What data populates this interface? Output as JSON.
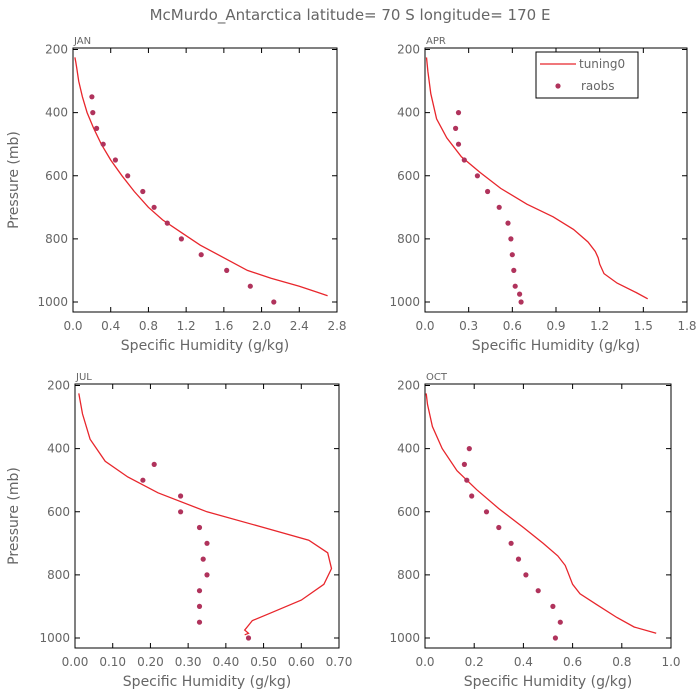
{
  "title": "McMurdo_Antarctica  latitude= 70 S longitude= 170 E",
  "colors": {
    "model": "#e8262c",
    "obs": "#b0335c",
    "axes": "#000000",
    "text": "#666666"
  },
  "legend": {
    "model": "tuning0",
    "obs": "raobs",
    "placement": "top-right of APR panel"
  },
  "chart_data": [
    {
      "type": "line",
      "panel": "JAN",
      "xlabel": "Specific Humidity (g/kg)",
      "ylabel": "Pressure (mb)",
      "xlim": [
        0,
        2.8
      ],
      "ylim": [
        1000,
        200
      ],
      "xticks": [
        "0.0",
        "0.4",
        "0.8",
        "1.2",
        "1.6",
        "2.0",
        "2.4",
        "2.8"
      ],
      "yticks": [
        "200",
        "400",
        "600",
        "800",
        "1000"
      ],
      "series": [
        {
          "name": "tuning0",
          "kind": "line",
          "x": [
            2.7,
            2.6,
            2.4,
            2.1,
            1.85,
            1.6,
            1.35,
            1.15,
            0.95,
            0.8,
            0.65,
            0.52,
            0.4,
            0.3,
            0.22,
            0.15,
            0.1,
            0.06,
            0.04,
            0.03,
            0.02
          ],
          "y": [
            980,
            970,
            950,
            925,
            900,
            860,
            820,
            780,
            740,
            700,
            650,
            600,
            550,
            500,
            450,
            400,
            350,
            300,
            260,
            240,
            225
          ]
        },
        {
          "name": "raobs",
          "kind": "points",
          "x": [
            2.13,
            1.88,
            1.63,
            1.36,
            1.15,
            1.0,
            0.86,
            0.74,
            0.58,
            0.45,
            0.32,
            0.25,
            0.21,
            0.2
          ],
          "y": [
            1000,
            950,
            900,
            850,
            800,
            750,
            700,
            650,
            600,
            550,
            500,
            450,
            400,
            350
          ]
        }
      ]
    },
    {
      "type": "line",
      "panel": "APR",
      "xlabel": "Specific Humidity (g/kg)",
      "ylabel": "",
      "xlim": [
        0,
        1.8
      ],
      "ylim": [
        1000,
        200
      ],
      "xticks": [
        "0.0",
        "0.3",
        "0.6",
        "0.9",
        "1.2",
        "1.5",
        "1.8"
      ],
      "yticks": [
        "200",
        "400",
        "600",
        "800",
        "1000"
      ],
      "series": [
        {
          "name": "tuning0",
          "kind": "line",
          "x": [
            1.53,
            1.45,
            1.32,
            1.23,
            1.2,
            1.19,
            1.17,
            1.12,
            1.02,
            0.88,
            0.7,
            0.52,
            0.38,
            0.25,
            0.15,
            0.08,
            0.04,
            0.02,
            0.01
          ],
          "y": [
            990,
            970,
            940,
            910,
            880,
            860,
            840,
            810,
            770,
            730,
            690,
            640,
            590,
            540,
            480,
            420,
            340,
            270,
            225
          ]
        },
        {
          "name": "raobs",
          "kind": "points",
          "x": [
            0.66,
            0.65,
            0.62,
            0.61,
            0.6,
            0.59,
            0.57,
            0.51,
            0.43,
            0.36,
            0.27,
            0.23,
            0.21,
            0.23
          ],
          "y": [
            1000,
            975,
            950,
            900,
            850,
            800,
            750,
            700,
            650,
            600,
            550,
            500,
            450,
            400
          ]
        }
      ]
    },
    {
      "type": "line",
      "panel": "JUL",
      "xlabel": "Specific Humidity (g/kg)",
      "ylabel": "Pressure (mb)",
      "xlim": [
        0,
        0.7
      ],
      "ylim": [
        1000,
        200
      ],
      "xticks": [
        "0.00",
        "0.10",
        "0.20",
        "0.30",
        "0.40",
        "0.50",
        "0.60",
        "0.70"
      ],
      "yticks": [
        "200",
        "400",
        "600",
        "800",
        "1000"
      ],
      "series": [
        {
          "name": "tuning0",
          "kind": "line",
          "x": [
            0.45,
            0.46,
            0.45,
            0.46,
            0.47,
            0.52,
            0.6,
            0.66,
            0.68,
            0.67,
            0.62,
            0.5,
            0.35,
            0.22,
            0.14,
            0.08,
            0.04,
            0.02,
            0.01
          ],
          "y": [
            990,
            985,
            975,
            960,
            945,
            920,
            880,
            830,
            780,
            730,
            690,
            650,
            600,
            540,
            490,
            440,
            370,
            290,
            225
          ]
        },
        {
          "name": "raobs",
          "kind": "points",
          "x": [
            0.46,
            0.33,
            0.33,
            0.33,
            0.35,
            0.34,
            0.35,
            0.33,
            0.28,
            0.28,
            0.18,
            0.21
          ],
          "y": [
            1000,
            950,
            900,
            850,
            800,
            750,
            700,
            650,
            600,
            550,
            500,
            450
          ]
        }
      ]
    },
    {
      "type": "line",
      "panel": "OCT",
      "xlabel": "Specific Humidity (g/kg)",
      "ylabel": "",
      "xlim": [
        0,
        1.0
      ],
      "ylim": [
        1000,
        200
      ],
      "xticks": [
        "0.0",
        "0.2",
        "0.4",
        "0.6",
        "0.8",
        "1.0"
      ],
      "yticks": [
        "200",
        "400",
        "600",
        "800",
        "1000"
      ],
      "series": [
        {
          "name": "tuning0",
          "kind": "line",
          "x": [
            0.94,
            0.85,
            0.78,
            0.7,
            0.63,
            0.6,
            0.58,
            0.57,
            0.54,
            0.48,
            0.4,
            0.3,
            0.21,
            0.13,
            0.07,
            0.03,
            0.01,
            0.005
          ],
          "y": [
            985,
            965,
            935,
            895,
            860,
            830,
            790,
            770,
            740,
            700,
            650,
            590,
            530,
            470,
            400,
            330,
            260,
            225
          ]
        },
        {
          "name": "raobs",
          "kind": "points",
          "x": [
            0.53,
            0.55,
            0.52,
            0.46,
            0.41,
            0.38,
            0.35,
            0.3,
            0.25,
            0.19,
            0.17,
            0.16,
            0.18
          ],
          "y": [
            1000,
            950,
            900,
            850,
            800,
            750,
            700,
            650,
            600,
            550,
            500,
            450,
            400
          ]
        }
      ]
    }
  ]
}
